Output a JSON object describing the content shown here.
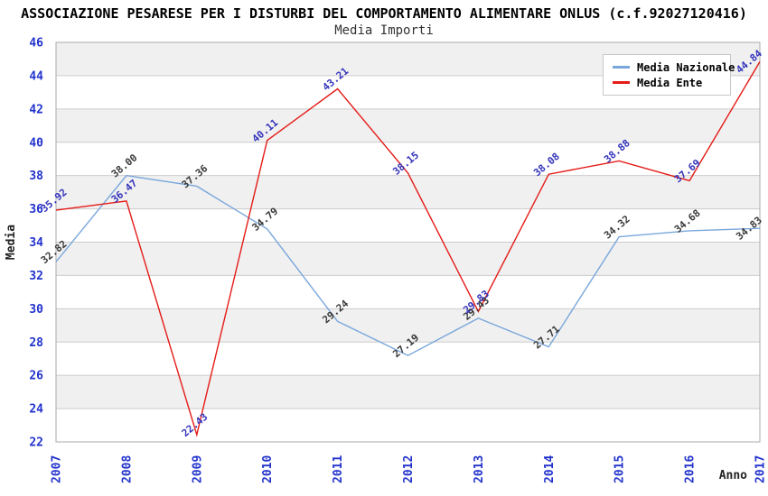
{
  "header": {
    "title": "ASSOCIAZIONE PESARESE PER I DISTURBI DEL COMPORTAMENTO ALIMENTARE ONLUS (c.f.92027120416)",
    "subtitle": "Media Importi"
  },
  "chart_data": {
    "type": "line",
    "x": [
      2007,
      2008,
      2009,
      2010,
      2011,
      2012,
      2013,
      2014,
      2015,
      2016,
      2017
    ],
    "xticks": [
      "2007",
      "2008",
      "2009",
      "2010",
      "2011",
      "2012",
      "2013",
      "2014",
      "2015",
      "2016",
      "2017"
    ],
    "yticks": [
      22,
      24,
      26,
      28,
      30,
      32,
      34,
      36,
      38,
      40,
      42,
      44,
      46
    ],
    "series": [
      {
        "name": "Media Nazionale",
        "color": "#7aa7db",
        "label_color": "#3a3a3a",
        "values": [
          32.82,
          38.0,
          37.36,
          34.79,
          29.24,
          27.19,
          29.43,
          27.71,
          34.32,
          34.68,
          34.83
        ]
      },
      {
        "name": "Media Ente",
        "color": "#e41b17",
        "label_color": "#3333bb",
        "values": [
          35.92,
          36.47,
          22.43,
          40.11,
          43.21,
          38.15,
          29.83,
          38.08,
          38.88,
          37.69,
          44.84
        ]
      }
    ],
    "xlabel": "Anno",
    "ylabel": "Media",
    "ylim": [
      22,
      46
    ],
    "ytick_step": 2,
    "grid": true,
    "legend_position": "top-right",
    "colors": {
      "tick_label": "#2233cc",
      "grid_line": "#cccccc",
      "band_fill": "#f0f0f0",
      "plot_border": "#aaaaaa",
      "axis_title": "#222222"
    }
  }
}
